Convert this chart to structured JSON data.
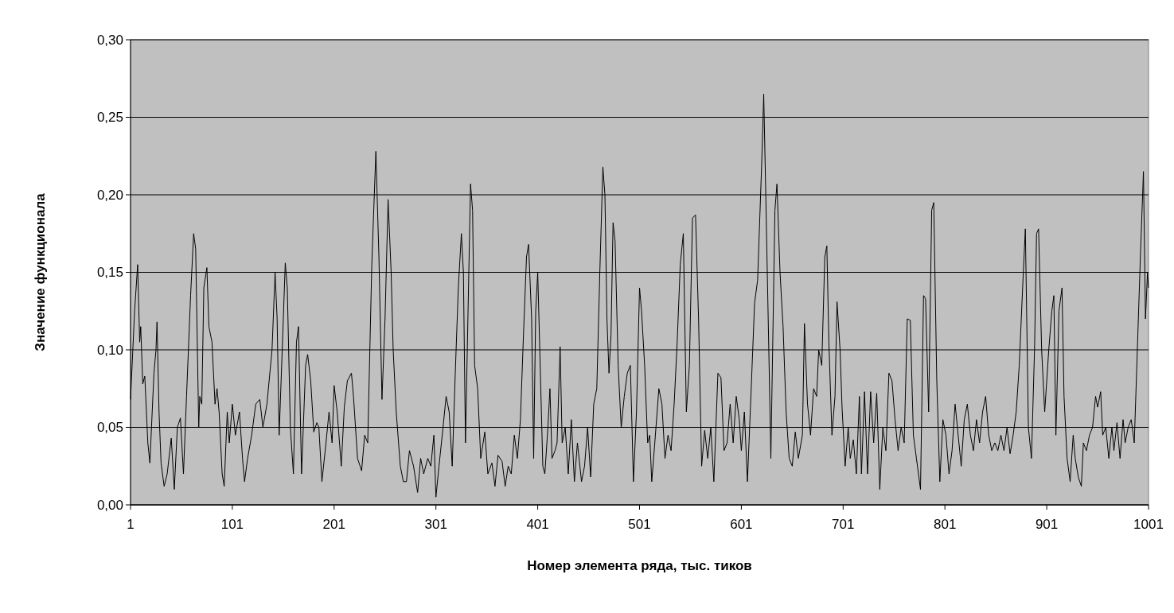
{
  "chart_data": {
    "type": "line",
    "xlabel": "Номер элемента ряда, тыс. тиков",
    "ylabel": "Значение функционала",
    "xlim": [
      1,
      1001
    ],
    "xticks": [
      1,
      101,
      201,
      301,
      401,
      501,
      601,
      701,
      801,
      901,
      1001
    ],
    "ylim": [
      0,
      0.3
    ],
    "yticks": [
      {
        "value": 0,
        "label": "0,00"
      },
      {
        "value": 0.05,
        "label": "0,05"
      },
      {
        "value": 0.1,
        "label": "0,10"
      },
      {
        "value": 0.15,
        "label": "0,15"
      },
      {
        "value": 0.2,
        "label": "0,20"
      },
      {
        "value": 0.25,
        "label": "0,25"
      },
      {
        "value": 0.3,
        "label": "0,30"
      }
    ],
    "grid": "y",
    "series": [
      {
        "color": "#000000",
        "x": [
          1,
          5,
          8,
          10,
          11,
          13,
          15,
          18,
          20,
          24,
          26,
          27,
          29,
          31,
          34,
          37,
          41,
          44,
          47,
          50,
          53,
          56,
          60,
          63,
          65,
          68,
          69,
          71,
          73,
          76,
          78,
          81,
          84,
          86,
          88,
          91,
          93,
          96,
          98,
          101,
          104,
          108,
          111,
          113,
          116,
          120,
          124,
          128,
          131,
          135,
          140,
          143,
          145,
          147,
          150,
          153,
          155,
          158,
          161,
          164,
          166,
          169,
          173,
          175,
          178,
          181,
          184,
          186,
          189,
          193,
          196,
          199,
          201,
          204,
          208,
          211,
          214,
          218,
          220,
          224,
          228,
          231,
          234,
          238,
          242,
          245,
          248,
          251,
          254,
          257,
          259,
          262,
          266,
          269,
          272,
          275,
          279,
          283,
          286,
          289,
          293,
          296,
          299,
          301,
          304,
          308,
          311,
          314,
          317,
          320,
          323,
          326,
          328,
          330,
          333,
          335,
          337,
          339,
          342,
          345,
          349,
          352,
          356,
          359,
          362,
          366,
          369,
          372,
          375,
          378,
          381,
          384,
          387,
          390,
          392,
          395,
          397,
          399,
          401,
          403,
          406,
          408,
          411,
          413,
          415,
          418,
          420,
          423,
          425,
          428,
          431,
          434,
          437,
          440,
          444,
          447,
          450,
          453,
          456,
          459,
          462,
          465,
          467,
          469,
          471,
          473,
          475,
          477,
          480,
          483,
          486,
          489,
          492,
          495,
          498,
          501,
          503,
          506,
          509,
          511,
          513,
          516,
          520,
          523,
          526,
          529,
          532,
          535,
          538,
          541,
          544,
          547,
          550,
          553,
          556,
          559,
          562,
          565,
          568,
          571,
          574,
          578,
          581,
          584,
          587,
          590,
          593,
          596,
          599,
          601,
          604,
          607,
          611,
          614,
          617,
          621,
          623,
          625,
          628,
          630,
          634,
          636,
          639,
          642,
          645,
          648,
          651,
          654,
          657,
          661,
          663,
          666,
          669,
          672,
          675,
          677,
          680,
          683,
          685,
          687,
          690,
          693,
          695,
          698,
          700,
          703,
          706,
          708,
          711,
          714,
          717,
          719,
          722,
          725,
          728,
          731,
          734,
          737,
          740,
          743,
          746,
          749,
          752,
          755,
          758,
          761,
          764,
          767,
          770,
          773,
          777,
          780,
          782,
          785,
          788,
          790,
          793,
          796,
          799,
          802,
          805,
          808,
          811,
          814,
          817,
          820,
          823,
          826,
          829,
          832,
          835,
          838,
          841,
          844,
          847,
          850,
          853,
          856,
          859,
          862,
          865,
          868,
          871,
          874,
          878,
          880,
          883,
          886,
          889,
          891,
          893,
          896,
          899,
          903,
          906,
          908,
          910,
          913,
          916,
          918,
          921,
          924,
          927,
          929,
          932,
          935,
          937,
          940,
          943,
          946,
          949,
          951,
          954,
          956,
          959,
          962,
          965,
          967,
          970,
          973,
          976,
          978,
          981,
          984,
          987,
          990,
          993,
          996,
          998,
          1000,
          1001
        ],
        "values": [
          0.068,
          0.125,
          0.155,
          0.105,
          0.115,
          0.078,
          0.083,
          0.04,
          0.027,
          0.085,
          0.1,
          0.118,
          0.06,
          0.027,
          0.012,
          0.02,
          0.043,
          0.01,
          0.05,
          0.056,
          0.02,
          0.07,
          0.135,
          0.175,
          0.165,
          0.05,
          0.07,
          0.065,
          0.14,
          0.153,
          0.115,
          0.105,
          0.065,
          0.075,
          0.06,
          0.02,
          0.012,
          0.06,
          0.04,
          0.065,
          0.045,
          0.06,
          0.03,
          0.015,
          0.03,
          0.045,
          0.065,
          0.068,
          0.05,
          0.065,
          0.1,
          0.15,
          0.12,
          0.045,
          0.1,
          0.156,
          0.14,
          0.05,
          0.02,
          0.105,
          0.115,
          0.02,
          0.09,
          0.097,
          0.08,
          0.047,
          0.053,
          0.05,
          0.015,
          0.04,
          0.06,
          0.04,
          0.077,
          0.06,
          0.025,
          0.063,
          0.08,
          0.085,
          0.07,
          0.03,
          0.022,
          0.045,
          0.04,
          0.155,
          0.228,
          0.16,
          0.068,
          0.12,
          0.197,
          0.15,
          0.1,
          0.06,
          0.025,
          0.015,
          0.015,
          0.035,
          0.025,
          0.008,
          0.03,
          0.02,
          0.03,
          0.025,
          0.045,
          0.005,
          0.025,
          0.05,
          0.07,
          0.06,
          0.025,
          0.085,
          0.14,
          0.175,
          0.15,
          0.04,
          0.14,
          0.207,
          0.19,
          0.09,
          0.075,
          0.03,
          0.047,
          0.02,
          0.027,
          0.012,
          0.032,
          0.028,
          0.012,
          0.025,
          0.02,
          0.045,
          0.03,
          0.055,
          0.11,
          0.16,
          0.168,
          0.12,
          0.03,
          0.125,
          0.15,
          0.1,
          0.025,
          0.02,
          0.05,
          0.075,
          0.03,
          0.035,
          0.04,
          0.102,
          0.04,
          0.05,
          0.02,
          0.055,
          0.015,
          0.04,
          0.015,
          0.025,
          0.05,
          0.018,
          0.065,
          0.075,
          0.15,
          0.218,
          0.2,
          0.12,
          0.085,
          0.11,
          0.182,
          0.17,
          0.09,
          0.05,
          0.07,
          0.085,
          0.09,
          0.015,
          0.06,
          0.14,
          0.125,
          0.09,
          0.04,
          0.045,
          0.015,
          0.04,
          0.075,
          0.065,
          0.03,
          0.045,
          0.035,
          0.065,
          0.105,
          0.155,
          0.175,
          0.06,
          0.09,
          0.185,
          0.187,
          0.12,
          0.025,
          0.048,
          0.03,
          0.05,
          0.015,
          0.085,
          0.082,
          0.035,
          0.04,
          0.065,
          0.04,
          0.07,
          0.055,
          0.035,
          0.06,
          0.015,
          0.08,
          0.13,
          0.145,
          0.22,
          0.265,
          0.2,
          0.1,
          0.03,
          0.19,
          0.207,
          0.15,
          0.115,
          0.06,
          0.03,
          0.025,
          0.047,
          0.03,
          0.045,
          0.117,
          0.065,
          0.045,
          0.075,
          0.07,
          0.1,
          0.09,
          0.16,
          0.167,
          0.105,
          0.045,
          0.07,
          0.131,
          0.1,
          0.062,
          0.025,
          0.05,
          0.03,
          0.042,
          0.02,
          0.07,
          0.02,
          0.073,
          0.02,
          0.073,
          0.04,
          0.072,
          0.01,
          0.05,
          0.035,
          0.085,
          0.08,
          0.055,
          0.035,
          0.05,
          0.04,
          0.12,
          0.119,
          0.045,
          0.03,
          0.01,
          0.135,
          0.133,
          0.06,
          0.19,
          0.195,
          0.08,
          0.015,
          0.055,
          0.045,
          0.02,
          0.035,
          0.065,
          0.045,
          0.025,
          0.055,
          0.065,
          0.045,
          0.035,
          0.055,
          0.04,
          0.06,
          0.07,
          0.045,
          0.035,
          0.04,
          0.035,
          0.045,
          0.035,
          0.05,
          0.033,
          0.045,
          0.06,
          0.09,
          0.15,
          0.178,
          0.05,
          0.03,
          0.1,
          0.175,
          0.178,
          0.1,
          0.06,
          0.1,
          0.125,
          0.135,
          0.045,
          0.125,
          0.14,
          0.07,
          0.03,
          0.015,
          0.045,
          0.03,
          0.018,
          0.012,
          0.04,
          0.035,
          0.045,
          0.05,
          0.07,
          0.063,
          0.073,
          0.045,
          0.05,
          0.03,
          0.05,
          0.035,
          0.053,
          0.03,
          0.055,
          0.04,
          0.05,
          0.055,
          0.04,
          0.1,
          0.16,
          0.215,
          0.12,
          0.15,
          0.14
        ]
      }
    ]
  }
}
